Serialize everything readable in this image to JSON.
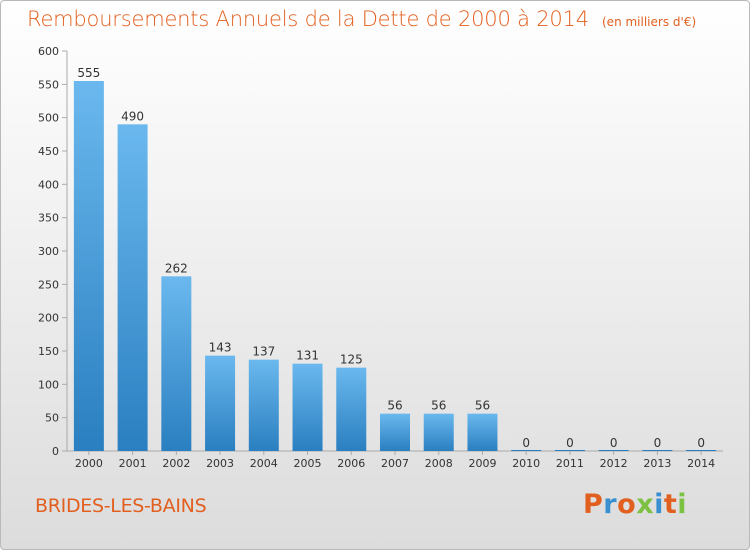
{
  "header": {
    "title": "Remboursements Annuels de la Dette de 2000 à 2014",
    "unit": "(en milliers d'€)"
  },
  "footer": {
    "commune": "BRIDES-LES-BAINS",
    "logo_text": "Proxiti",
    "logo_colors": [
      "#e2601f",
      "#3a8fd1",
      "#e2601f",
      "#7cc142",
      "#3a8fd1",
      "#e2601f",
      "#7cc142"
    ]
  },
  "colors": {
    "bar_light": "#6ab8ee",
    "bar_dark": "#2a7fc0",
    "label": "#333333",
    "grid": "#aaaaaa"
  },
  "chart_data": {
    "type": "bar",
    "categories": [
      "2000",
      "2001",
      "2002",
      "2003",
      "2004",
      "2005",
      "2006",
      "2007",
      "2008",
      "2009",
      "2010",
      "2011",
      "2012",
      "2013",
      "2014"
    ],
    "values": [
      555,
      490,
      262,
      143,
      137,
      131,
      125,
      56,
      56,
      56,
      0,
      0,
      0,
      0,
      0
    ],
    "title": "Remboursements Annuels de la Dette de 2000 à 2014",
    "unit": "(en milliers d'€)",
    "ylim": [
      0,
      600
    ],
    "yticks": [
      0,
      50,
      100,
      150,
      200,
      250,
      300,
      350,
      400,
      450,
      500,
      550,
      600
    ],
    "grid": false,
    "data_labels": true
  }
}
